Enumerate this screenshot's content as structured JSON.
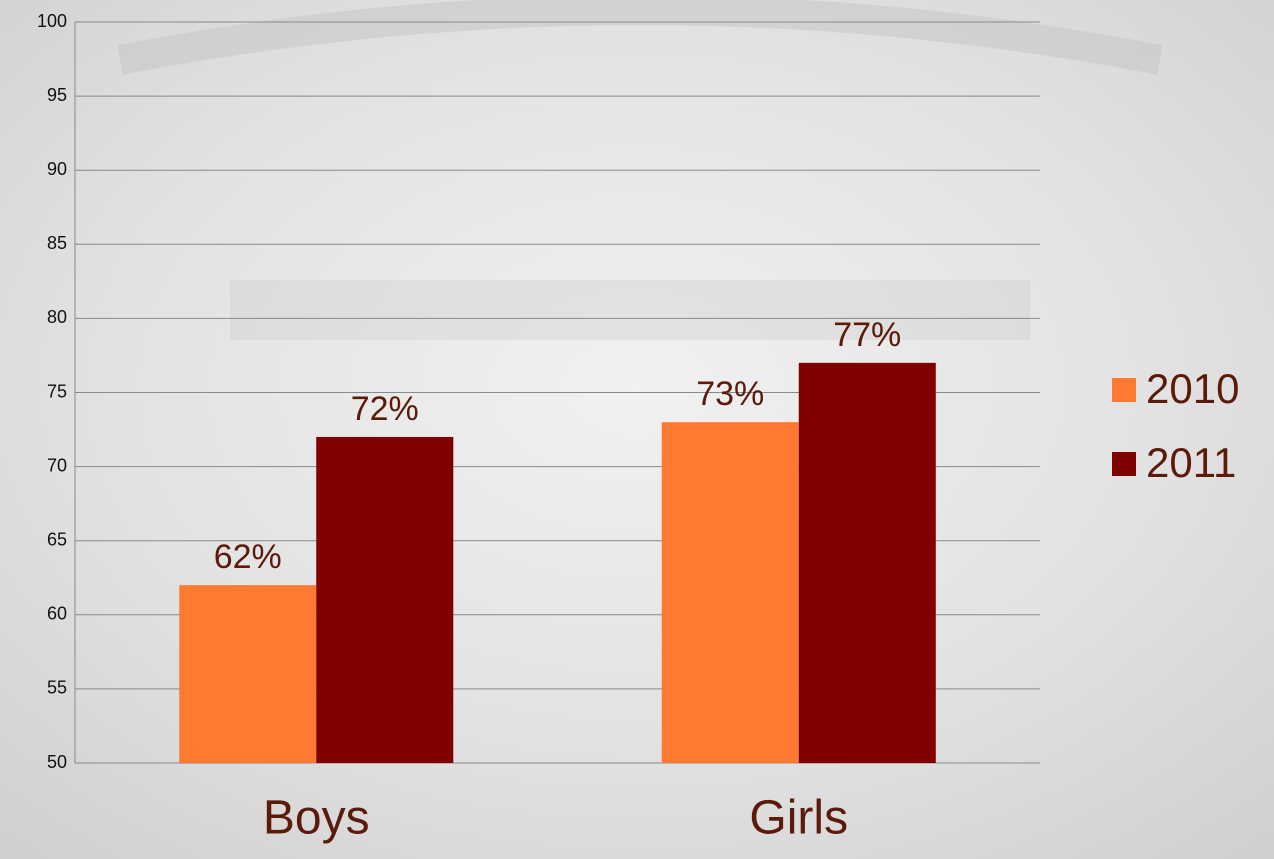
{
  "chart_data": {
    "type": "bar",
    "categories": [
      "Boys",
      "Girls"
    ],
    "series": [
      {
        "name": "2010",
        "color": "#ff7a30",
        "values": [
          62,
          73
        ],
        "value_labels": [
          "62%",
          "73%"
        ]
      },
      {
        "name": "2011",
        "color": "#800000",
        "values": [
          72,
          77
        ],
        "value_labels": [
          "72%",
          "77%"
        ]
      }
    ],
    "ylim": [
      50,
      100
    ],
    "yticks": [
      50,
      55,
      60,
      65,
      70,
      75,
      80,
      85,
      90,
      95,
      100
    ],
    "grid": true,
    "legend": "right"
  }
}
